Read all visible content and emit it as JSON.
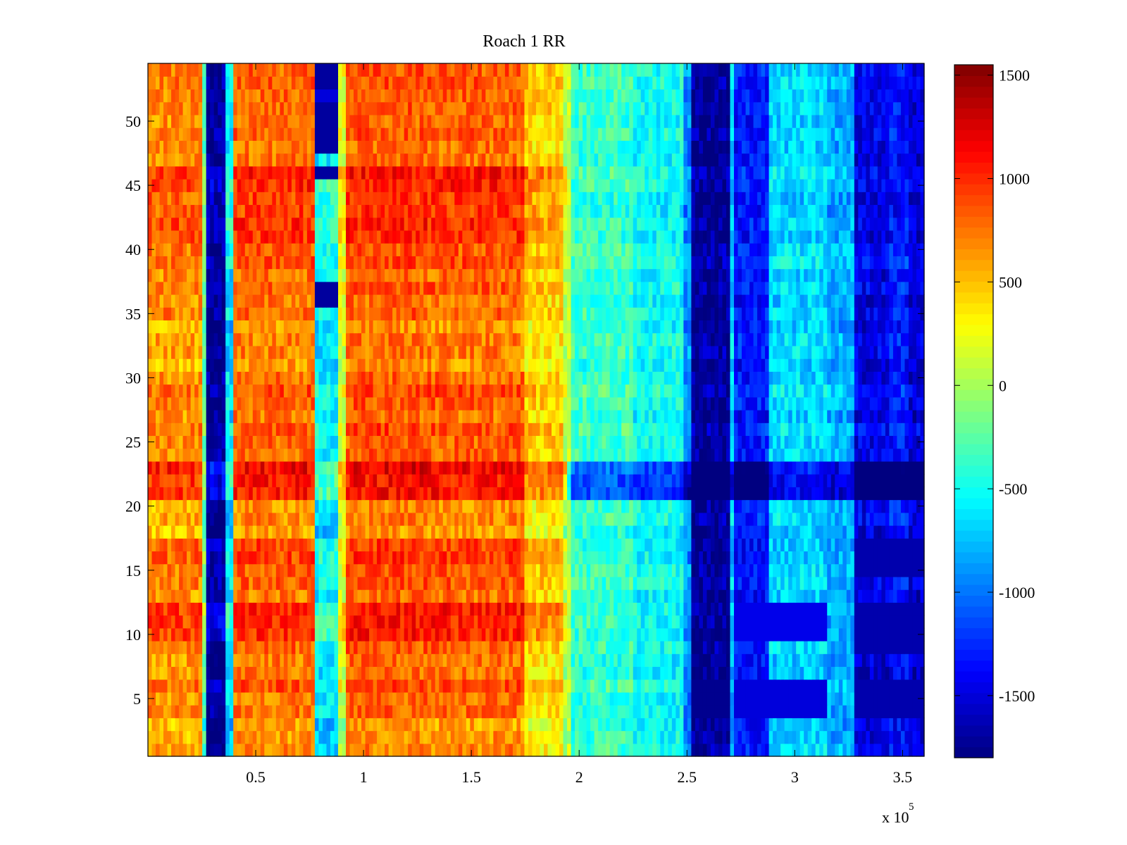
{
  "chart_data": {
    "type": "heatmap",
    "title": "Roach 1 RR",
    "xlabel": "",
    "ylabel": "",
    "x_exponent_label": "x 10",
    "x_exponent_power": "5",
    "xlim": [
      0,
      360000
    ],
    "ylim": [
      0.5,
      54.5
    ],
    "rows": 54,
    "x_ticks": [
      {
        "value": 50000,
        "label": "0.5"
      },
      {
        "value": 100000,
        "label": "1"
      },
      {
        "value": 150000,
        "label": "1.5"
      },
      {
        "value": 200000,
        "label": "2"
      },
      {
        "value": 250000,
        "label": "2.5"
      },
      {
        "value": 300000,
        "label": "3"
      },
      {
        "value": 350000,
        "label": "3.5"
      }
    ],
    "y_ticks": [
      {
        "value": 5,
        "label": "5"
      },
      {
        "value": 10,
        "label": "10"
      },
      {
        "value": 15,
        "label": "15"
      },
      {
        "value": 20,
        "label": "20"
      },
      {
        "value": 25,
        "label": "25"
      },
      {
        "value": 30,
        "label": "30"
      },
      {
        "value": 35,
        "label": "35"
      },
      {
        "value": 40,
        "label": "40"
      },
      {
        "value": 45,
        "label": "45"
      },
      {
        "value": 50,
        "label": "50"
      }
    ],
    "colorbar": {
      "colormap": "jet",
      "clim": [
        -1800,
        1550
      ],
      "ticks": [
        {
          "value": 1500,
          "label": "1500"
        },
        {
          "value": 1000,
          "label": "1000"
        },
        {
          "value": 500,
          "label": "500"
        },
        {
          "value": 0,
          "label": "0"
        },
        {
          "value": -500,
          "label": "-500"
        },
        {
          "value": -1000,
          "label": "-1000"
        },
        {
          "value": -1500,
          "label": "-1500"
        }
      ]
    },
    "column_profile": [
      {
        "x_start": 0,
        "x_end": 25000,
        "value": 700
      },
      {
        "x_start": 25000,
        "x_end": 26500,
        "value": -200
      },
      {
        "x_start": 26500,
        "x_end": 36500,
        "value": -1700
      },
      {
        "x_start": 36500,
        "x_end": 39000,
        "value": -600
      },
      {
        "x_start": 39000,
        "x_end": 77000,
        "value": 800
      },
      {
        "x_start": 77000,
        "x_end": 88000,
        "value": -550
      },
      {
        "x_start": 88000,
        "x_end": 92000,
        "value": 200
      },
      {
        "x_start": 92000,
        "x_end": 130000,
        "value": 850
      },
      {
        "x_start": 130000,
        "x_end": 175000,
        "value": 820
      },
      {
        "x_start": 175000,
        "x_end": 192000,
        "value": 450
      },
      {
        "x_start": 192000,
        "x_end": 197000,
        "value": 100
      },
      {
        "x_start": 197000,
        "x_end": 225000,
        "value": -350
      },
      {
        "x_start": 225000,
        "x_end": 249000,
        "value": -500
      },
      {
        "x_start": 249000,
        "x_end": 252000,
        "value": -900
      },
      {
        "x_start": 252000,
        "x_end": 270000,
        "value": -1700
      },
      {
        "x_start": 270000,
        "x_end": 272000,
        "value": -700
      },
      {
        "x_start": 272000,
        "x_end": 288000,
        "value": -1300
      },
      {
        "x_start": 288000,
        "x_end": 315000,
        "value": -650
      },
      {
        "x_start": 315000,
        "x_end": 327000,
        "value": -800
      },
      {
        "x_start": 327000,
        "x_end": 343000,
        "value": -1450
      },
      {
        "x_start": 343000,
        "x_end": 352000,
        "value": -1300
      },
      {
        "x_start": 352000,
        "x_end": 360000,
        "value": -1500
      }
    ],
    "row_bands": [
      {
        "y_start": 21,
        "y_end": 23,
        "region": "left",
        "offset": 300
      },
      {
        "y_start": 21,
        "y_end": 23,
        "region": "right",
        "offset": -700
      },
      {
        "y_start": 10,
        "y_end": 12,
        "region": "left",
        "offset": 250
      },
      {
        "y_start": 16,
        "y_end": 17,
        "region": "left",
        "offset": 150
      },
      {
        "y_start": 41,
        "y_end": 46,
        "region": "left",
        "offset": 200
      },
      {
        "y_start": 1,
        "y_end": 3,
        "region": "left",
        "offset": -150
      },
      {
        "y_start": 18,
        "y_end": 20,
        "region": "left",
        "offset": -150
      },
      {
        "y_start": 31,
        "y_end": 34,
        "region": "left",
        "offset": -120
      }
    ],
    "blocks": [
      {
        "x_start": 77000,
        "x_end": 88000,
        "y_start": 48,
        "y_end": 51,
        "value": -1700
      },
      {
        "x_start": 77000,
        "x_end": 88000,
        "y_start": 46,
        "y_end": 46,
        "value": -1700
      },
      {
        "x_start": 77000,
        "x_end": 88000,
        "y_start": 36,
        "y_end": 37,
        "value": -1700
      },
      {
        "x_start": 77000,
        "x_end": 88000,
        "y_start": 53,
        "y_end": 54,
        "value": -1700
      },
      {
        "x_start": 77000,
        "x_end": 88000,
        "y_start": 52,
        "y_end": 52,
        "value": -1500
      },
      {
        "x_start": 327000,
        "x_end": 360000,
        "y_start": 4,
        "y_end": 6,
        "value": -1650
      },
      {
        "x_start": 327000,
        "x_end": 360000,
        "y_start": 9,
        "y_end": 12,
        "value": -1650
      },
      {
        "x_start": 327000,
        "x_end": 360000,
        "y_start": 15,
        "y_end": 17,
        "value": -1650
      },
      {
        "x_start": 252000,
        "x_end": 270000,
        "y_start": 4,
        "y_end": 6,
        "value": -1750
      },
      {
        "x_start": 272000,
        "x_end": 315000,
        "y_start": 4,
        "y_end": 6,
        "value": -1500
      },
      {
        "x_start": 272000,
        "x_end": 315000,
        "y_start": 10,
        "y_end": 12,
        "value": -1450
      }
    ]
  }
}
